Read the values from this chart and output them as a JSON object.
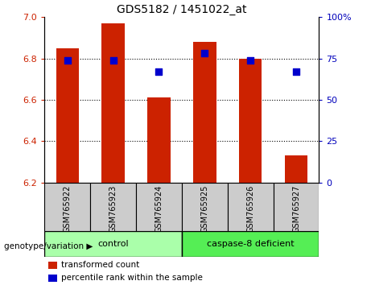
{
  "title": "GDS5182 / 1451022_at",
  "samples": [
    "GSM765922",
    "GSM765923",
    "GSM765924",
    "GSM765925",
    "GSM765926",
    "GSM765927"
  ],
  "bar_values": [
    6.85,
    6.97,
    6.61,
    6.88,
    6.8,
    6.33
  ],
  "bar_bottom": 6.2,
  "percentile_values": [
    74,
    74,
    67,
    78,
    74,
    67
  ],
  "bar_color": "#cc2200",
  "dot_color": "#0000cc",
  "ylim_left": [
    6.2,
    7.0
  ],
  "ylim_right": [
    0,
    100
  ],
  "yticks_left": [
    6.2,
    6.4,
    6.6,
    6.8,
    7.0
  ],
  "yticks_right": [
    0,
    25,
    50,
    75,
    100
  ],
  "groups": [
    {
      "label": "control",
      "span": [
        0,
        2
      ],
      "color": "#aaffaa"
    },
    {
      "label": "caspase-8 deficient",
      "span": [
        3,
        5
      ],
      "color": "#55ee55"
    }
  ],
  "genotype_label": "genotype/variation",
  "legend_items": [
    {
      "label": "transformed count",
      "color": "#cc2200"
    },
    {
      "label": "percentile rank within the sample",
      "color": "#0000cc"
    }
  ],
  "bar_width": 0.5,
  "dot_size": 35,
  "bg_plot": "#ffffff",
  "bg_xtick": "#cccccc",
  "tick_label_color_left": "#cc2200",
  "tick_label_color_right": "#0000bb",
  "gridline_ticks": [
    6.4,
    6.6,
    6.8
  ]
}
